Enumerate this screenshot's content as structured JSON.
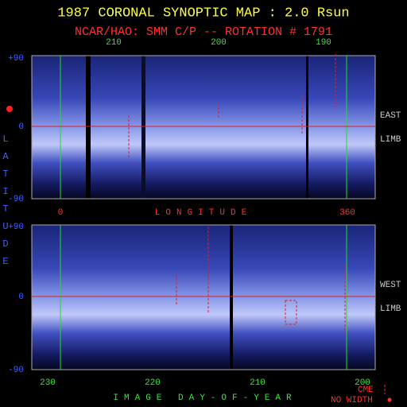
{
  "title": "1987 CORONAL SYNOPTIC MAP : 2.0 Rsun",
  "subtitle": "NCAR/HAO: SMM C/P -- ROTATION # 1791",
  "y_label": "LATITUDE",
  "top_panel": {
    "top_axis_ticks": [
      "210",
      "200",
      "190"
    ],
    "y_ticks": [
      "+90",
      "0",
      "-90"
    ],
    "side_labels": [
      "EAST",
      "LIMB"
    ],
    "bottom_axis_ticks": [
      "0",
      "360"
    ],
    "x_label": "LONGITUDE"
  },
  "bottom_panel": {
    "y_ticks": [
      "+90",
      "0",
      "-90"
    ],
    "side_labels": [
      "WEST",
      "LIMB"
    ],
    "bottom_axis_ticks": [
      "230",
      "220",
      "210",
      "200"
    ],
    "x_label": "IMAGE DAY-OF-YEAR"
  },
  "legend": {
    "cme": "CME",
    "no_width": "NO WIDTH"
  }
}
